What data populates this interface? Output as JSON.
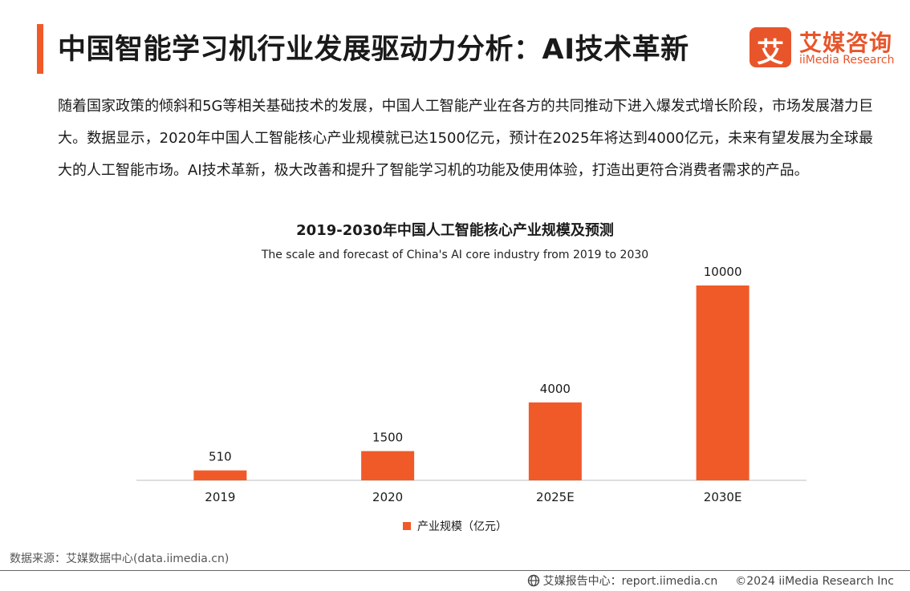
{
  "header": {
    "title": "中国智能学习机行业发展驱动力分析：AI技术革新"
  },
  "logo": {
    "mark": "艾",
    "name_cn": "艾媒咨询",
    "name_en": "iiMedia Research"
  },
  "intro": "随着国家政策的倾斜和5G等相关基础技术的发展，中国人工智能产业在各方的共同推动下进入爆发式增长阶段，市场发展潜力巨大。数据显示，2020年中国人工智能核心产业规模就已达1500亿元，预计在2025年将达到4000亿元，未来有望发展为全球最大的人工智能市场。AI技术革新，极大改善和提升了智能学习机的功能及使用体验，打造出更符合消费者需求的产品。",
  "chart_data": {
    "type": "bar",
    "title": "2019-2030年中国人工智能核心产业规模及预测",
    "subtitle": "The scale and forecast of China's AI core industry from 2019 to 2030",
    "categories": [
      "2019",
      "2020",
      "2025E",
      "2030E"
    ],
    "series": [
      {
        "name": "产业规模（亿元）",
        "values": [
          510,
          1500,
          4000,
          10000
        ],
        "color": "#f05a28"
      }
    ],
    "ylim": [
      0,
      10000
    ],
    "y_axis_visible": false,
    "grid": false,
    "data_labels": true,
    "legend": "bottom-center"
  },
  "source": "数据来源：艾媒数据中心(data.iimedia.cn)",
  "footer": {
    "report": "艾媒报告中心：report.iimedia.cn",
    "copyright": "©2024  iiMedia Research  Inc"
  },
  "colors": {
    "accent": "#f05a28",
    "text": "#1a1a1a",
    "axis": "#bfbfbf"
  }
}
